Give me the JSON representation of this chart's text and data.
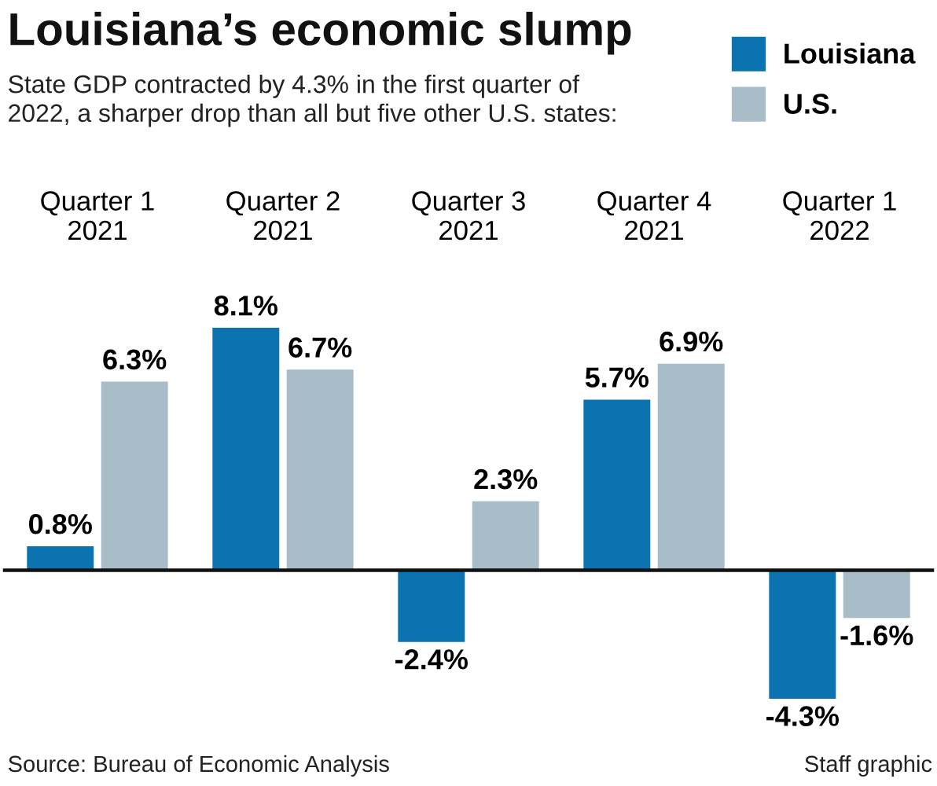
{
  "chart_data": {
    "type": "bar",
    "title": "Louisiana’s economic slump",
    "subtitle": "State GDP contracted by 4.3% in the first quarter of\n2022, a sharper drop than all but five other U.S. states:",
    "categories": [
      "Quarter 1 2021",
      "Quarter 2 2021",
      "Quarter 3 2021",
      "Quarter 4 2021",
      "Quarter 1 2022"
    ],
    "series": [
      {
        "name": "Louisiana",
        "color": "#0b74b0",
        "values": [
          0.8,
          8.1,
          -2.4,
          5.7,
          -4.3
        ],
        "value_labels": [
          "0.8%",
          "8.1%",
          "-2.4%",
          "5.7%",
          "-4.3%"
        ]
      },
      {
        "name": "U.S.",
        "color": "#a8bdc7",
        "values": [
          6.3,
          6.7,
          2.3,
          6.9,
          -1.6
        ],
        "value_labels": [
          "6.3%",
          "6.7%",
          "2.3%",
          "6.9%",
          "-1.6%"
        ]
      }
    ],
    "legend": "top right",
    "tick_labels": "x",
    "annotations": [
      "Source: Bureau of Economic Analysis",
      "Staff graphic"
    ]
  }
}
